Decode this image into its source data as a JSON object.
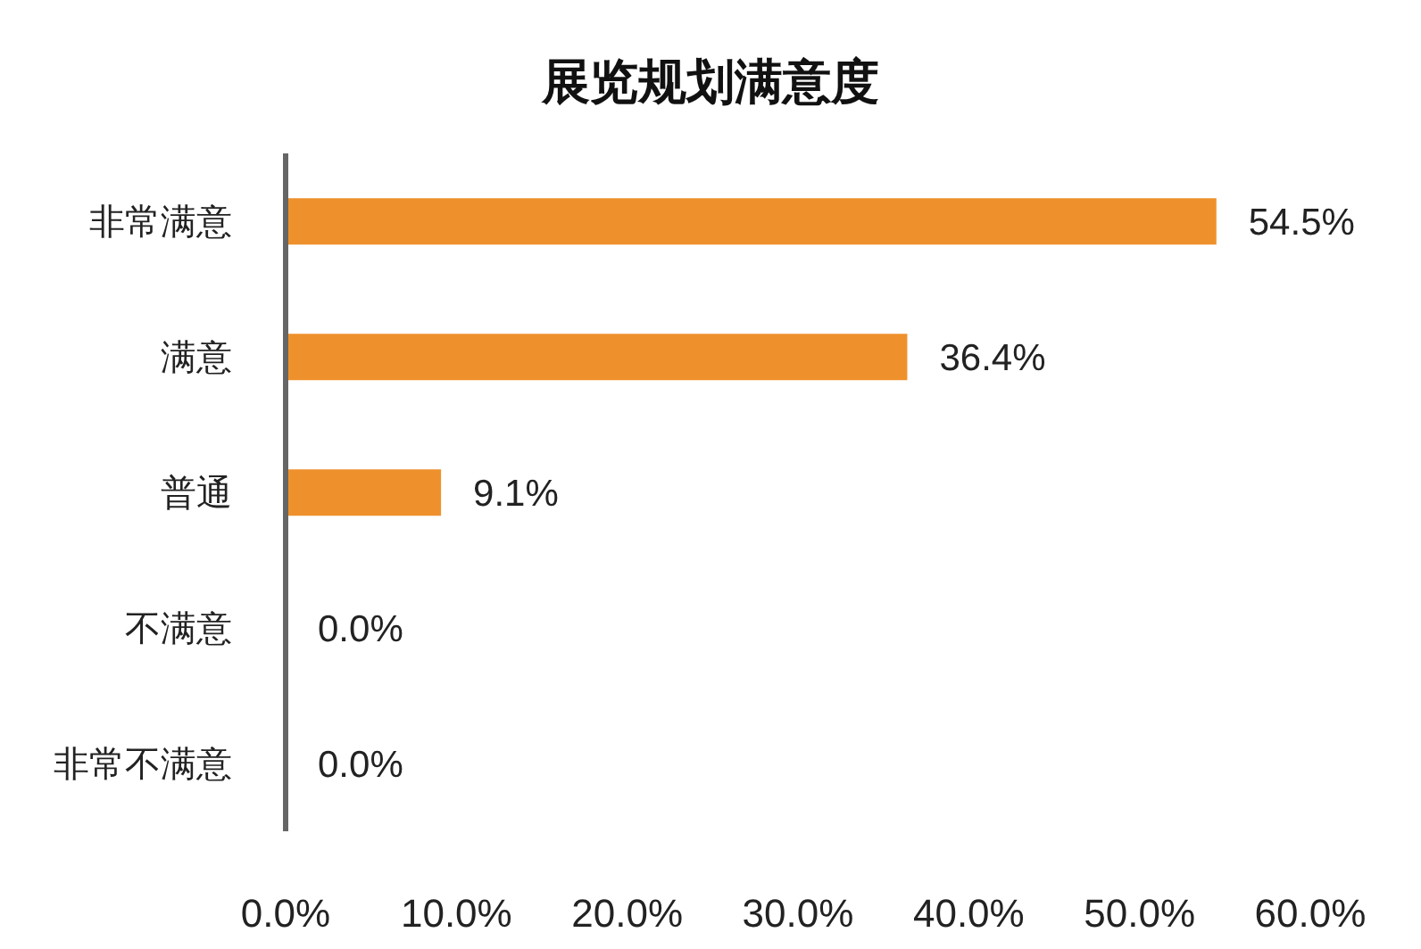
{
  "chart_data": {
    "type": "bar",
    "orientation": "horizontal",
    "title": "展览规划满意度",
    "categories": [
      "非常满意",
      "满意",
      "普通",
      "不满意",
      "非常不满意"
    ],
    "values": [
      54.5,
      36.4,
      9.1,
      0.0,
      0.0
    ],
    "color": "#ee912c",
    "value_labels": [
      "54.5%",
      "36.4%",
      "9.1%",
      "0.0%",
      "0.0%"
    ],
    "xlim": [
      0,
      60
    ],
    "xticks": [
      {
        "value": 0,
        "label": "0.0%"
      },
      {
        "value": 10,
        "label": "10.0%"
      },
      {
        "value": 20,
        "label": "20.0%"
      },
      {
        "value": 30,
        "label": "30.0%"
      },
      {
        "value": 40,
        "label": "40.0%"
      },
      {
        "value": 50,
        "label": "50.0%"
      },
      {
        "value": 60,
        "label": "60.0%"
      }
    ],
    "grid": false,
    "legend": false
  }
}
